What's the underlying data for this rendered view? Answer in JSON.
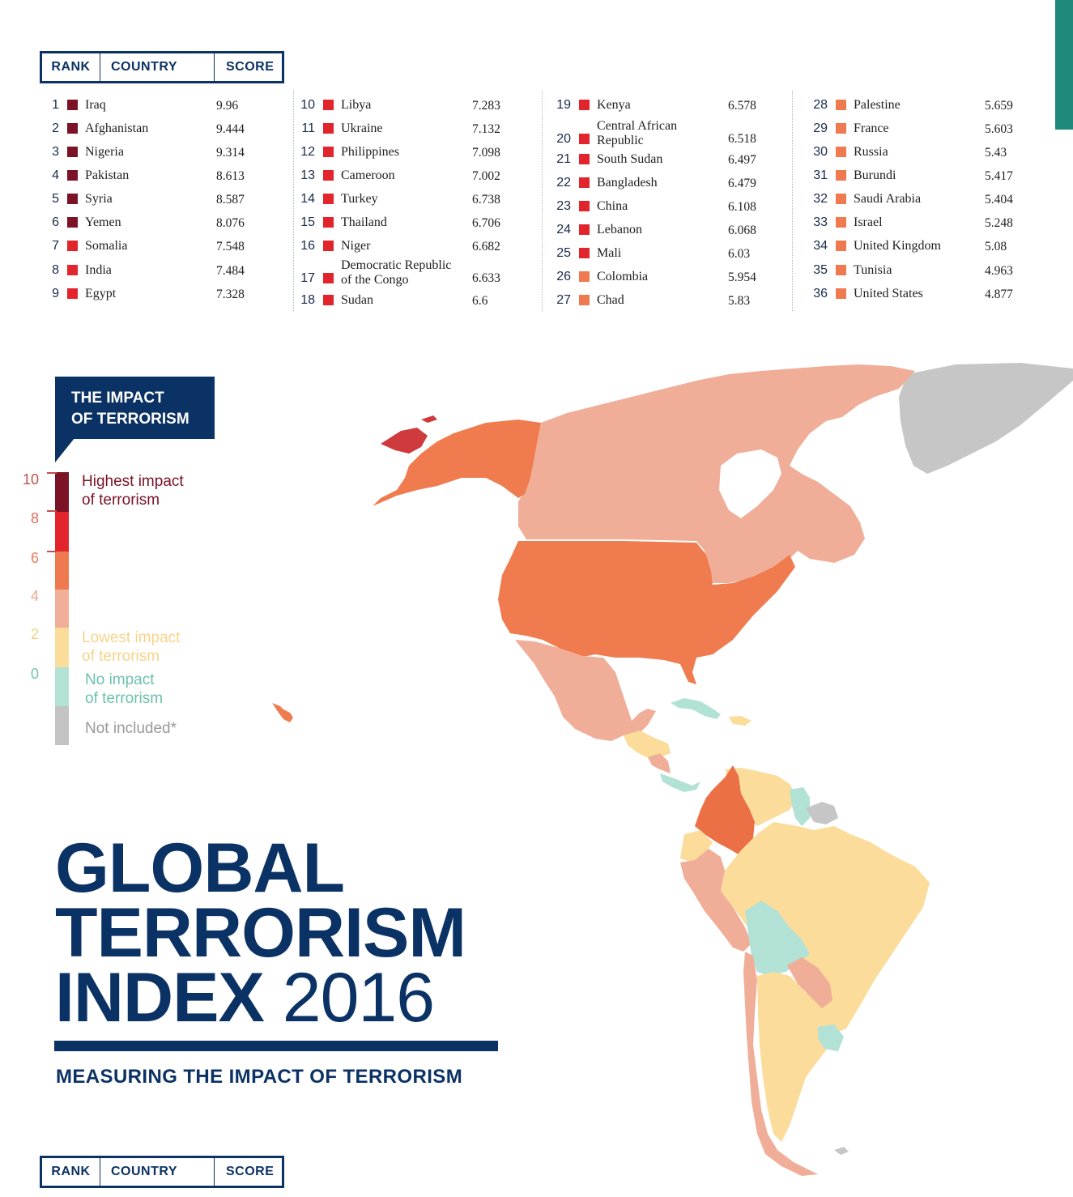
{
  "header_labels": {
    "rank": "RANK",
    "country": "COUNTRY",
    "score": "SCORE"
  },
  "ranking_columns": [
    [
      {
        "rank": "1",
        "country": "Iraq",
        "score": "9.96",
        "color": "#7b1226"
      },
      {
        "rank": "2",
        "country": "Afghanistan",
        "score": "9.444",
        "color": "#7b1226"
      },
      {
        "rank": "3",
        "country": "Nigeria",
        "score": "9.314",
        "color": "#7b1226"
      },
      {
        "rank": "4",
        "country": "Pakistan",
        "score": "8.613",
        "color": "#7b1226"
      },
      {
        "rank": "5",
        "country": "Syria",
        "score": "8.587",
        "color": "#7b1226"
      },
      {
        "rank": "6",
        "country": "Yemen",
        "score": "8.076",
        "color": "#7b1226"
      },
      {
        "rank": "7",
        "country": "Somalia",
        "score": "7.548",
        "color": "#e2252d"
      },
      {
        "rank": "8",
        "country": "India",
        "score": "7.484",
        "color": "#e2252d"
      },
      {
        "rank": "9",
        "country": "Egypt",
        "score": "7.328",
        "color": "#e2252d"
      }
    ],
    [
      {
        "rank": "10",
        "country": "Libya",
        "score": "7.283",
        "color": "#e2252d"
      },
      {
        "rank": "11",
        "country": "Ukraine",
        "score": "7.132",
        "color": "#e2252d"
      },
      {
        "rank": "12",
        "country": "Philippines",
        "score": "7.098",
        "color": "#e2252d"
      },
      {
        "rank": "13",
        "country": "Cameroon",
        "score": "7.002",
        "color": "#e2252d"
      },
      {
        "rank": "14",
        "country": "Turkey",
        "score": "6.738",
        "color": "#e2252d"
      },
      {
        "rank": "15",
        "country": "Thailand",
        "score": "6.706",
        "color": "#e2252d"
      },
      {
        "rank": "16",
        "country": "Niger",
        "score": "6.682",
        "color": "#e2252d"
      },
      {
        "rank": "17",
        "country": "Democratic Republic of the Congo",
        "score": "6.633",
        "color": "#e2252d"
      },
      {
        "rank": "18",
        "country": "Sudan",
        "score": "6.6",
        "color": "#e2252d"
      }
    ],
    [
      {
        "rank": "19",
        "country": "Kenya",
        "score": "6.578",
        "color": "#e2252d"
      },
      {
        "rank": "20",
        "country": "Central African Republic",
        "score": "6.518",
        "color": "#e2252d"
      },
      {
        "rank": "21",
        "country": "South Sudan",
        "score": "6.497",
        "color": "#e2252d"
      },
      {
        "rank": "22",
        "country": "Bangladesh",
        "score": "6.479",
        "color": "#e2252d"
      },
      {
        "rank": "23",
        "country": "China",
        "score": "6.108",
        "color": "#e2252d"
      },
      {
        "rank": "24",
        "country": "Lebanon",
        "score": "6.068",
        "color": "#e2252d"
      },
      {
        "rank": "25",
        "country": "Mali",
        "score": "6.03",
        "color": "#e2252d"
      },
      {
        "rank": "26",
        "country": "Colombia",
        "score": "5.954",
        "color": "#f07a50"
      },
      {
        "rank": "27",
        "country": "Chad",
        "score": "5.83",
        "color": "#f07a50"
      }
    ],
    [
      {
        "rank": "28",
        "country": "Palestine",
        "score": "5.659",
        "color": "#f07a50"
      },
      {
        "rank": "29",
        "country": "France",
        "score": "5.603",
        "color": "#f07a50"
      },
      {
        "rank": "30",
        "country": "Russia",
        "score": "5.43",
        "color": "#f07a50"
      },
      {
        "rank": "31",
        "country": "Burundi",
        "score": "5.417",
        "color": "#f07a50"
      },
      {
        "rank": "32",
        "country": "Saudi Arabia",
        "score": "5.404",
        "color": "#f07a50"
      },
      {
        "rank": "33",
        "country": "Israel",
        "score": "5.248",
        "color": "#f07a50"
      },
      {
        "rank": "34",
        "country": "United Kingdom",
        "score": "5.08",
        "color": "#f07a50"
      },
      {
        "rank": "35",
        "country": "Tunisia",
        "score": "4.963",
        "color": "#f07a50"
      },
      {
        "rank": "36",
        "country": "United States",
        "score": "4.877",
        "color": "#f07a50"
      }
    ]
  ],
  "legend": {
    "title_line1": "THE IMPACT",
    "title_line2": "OF TERRORISM",
    "scale_numbers": [
      {
        "value": "10",
        "color": "#c0504d"
      },
      {
        "value": "8",
        "color": "#e06a5a"
      },
      {
        "value": "6",
        "color": "#ea7d5c"
      },
      {
        "value": "4",
        "color": "#efa58e"
      },
      {
        "value": "2",
        "color": "#f6cf86"
      },
      {
        "value": "0",
        "color": "#76c4b4"
      }
    ],
    "bands": [
      {
        "label": "band-10-8",
        "color": "#7b1226"
      },
      {
        "label": "band-8-6",
        "color": "#e2252d"
      },
      {
        "label": "band-6-4",
        "color": "#f07a50"
      },
      {
        "label": "band-4-2",
        "color": "#f2ae98"
      },
      {
        "label": "band-2-0",
        "color": "#fbdc9a"
      },
      {
        "label": "band-0",
        "color": "#b2e1d6"
      },
      {
        "label": "band-not-included",
        "color": "#c3c3c3"
      }
    ],
    "highest_1": "Highest impact",
    "highest_2": "of terrorism",
    "lowest_1": "Lowest impact",
    "lowest_2": "of terrorism",
    "none_1": "No impact",
    "none_2": "of terrorism",
    "not_included": "Not included*",
    "colors": {
      "highest": "#7b1226",
      "lowest": "#f8d38a",
      "none": "#6cc1ad",
      "not_included": "#9a9a9a"
    }
  },
  "title": {
    "line1": "GLOBAL",
    "line2": "TERRORISM",
    "line3": "INDEX",
    "year": "2016"
  },
  "subtitle": "MEASURING THE IMPACT OF TERRORISM",
  "map_colors": {
    "greenland": "#c6c6c6",
    "canada": "#f0ae98",
    "usa": "#f07b4f",
    "alaska": "#f07b4f",
    "alaska_tip": "#cf3a3c",
    "mexico": "#f0ae98",
    "central_light": "#fbdc9a",
    "caribbean": "#b2e1d6",
    "colombia": "#ec7046",
    "brazil": "#fbdc9a",
    "argentina": "#fbdc9a",
    "peru_chile": "#f0ae98",
    "bolivia": "#b2e1d6",
    "guianas": "#c6c6c6"
  }
}
